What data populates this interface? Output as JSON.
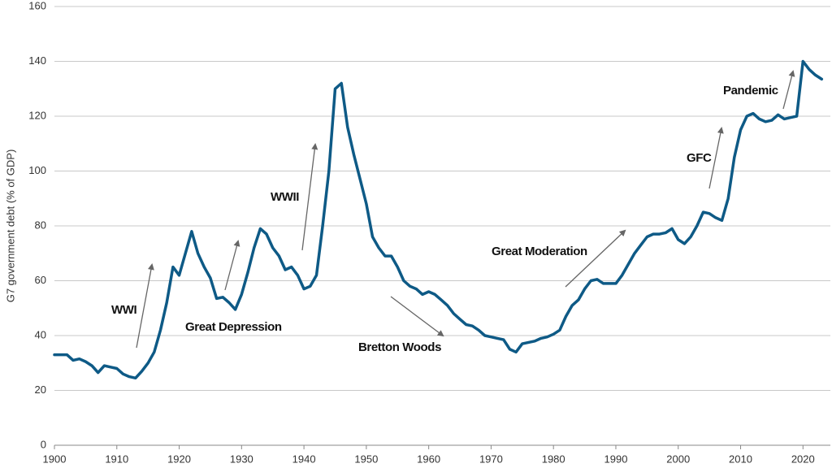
{
  "chart_data": {
    "type": "line",
    "y_label": "G7 government debt (% of GDP)",
    "x": [
      1900,
      1901,
      1902,
      1903,
      1904,
      1905,
      1906,
      1907,
      1908,
      1909,
      1910,
      1911,
      1912,
      1913,
      1914,
      1915,
      1916,
      1917,
      1918,
      1919,
      1920,
      1921,
      1922,
      1923,
      1924,
      1925,
      1926,
      1927,
      1928,
      1929,
      1930,
      1931,
      1932,
      1933,
      1934,
      1935,
      1936,
      1937,
      1938,
      1939,
      1940,
      1941,
      1942,
      1943,
      1944,
      1945,
      1946,
      1947,
      1948,
      1949,
      1950,
      1951,
      1952,
      1953,
      1954,
      1955,
      1956,
      1957,
      1958,
      1959,
      1960,
      1961,
      1962,
      1963,
      1964,
      1965,
      1966,
      1967,
      1968,
      1969,
      1970,
      1971,
      1972,
      1973,
      1974,
      1975,
      1976,
      1977,
      1978,
      1979,
      1980,
      1981,
      1982,
      1983,
      1984,
      1985,
      1986,
      1987,
      1988,
      1989,
      1990,
      1991,
      1992,
      1993,
      1994,
      1995,
      1996,
      1997,
      1998,
      1999,
      2000,
      2001,
      2002,
      2003,
      2004,
      2005,
      2006,
      2007,
      2008,
      2009,
      2010,
      2011,
      2012,
      2013,
      2014,
      2015,
      2016,
      2017,
      2018,
      2019,
      2020,
      2021,
      2022,
      2023
    ],
    "values": [
      33,
      33,
      33,
      31,
      31.5,
      30.5,
      29,
      26.5,
      29,
      28.5,
      28,
      26,
      25,
      24.5,
      27,
      30,
      34,
      42,
      52,
      65,
      62,
      70,
      78,
      70,
      65,
      61,
      53.5,
      54,
      52,
      49.5,
      55,
      63,
      72,
      79,
      77,
      72,
      69,
      64,
      65,
      62,
      57,
      58,
      62,
      80,
      100,
      130,
      132,
      116,
      106,
      97,
      88,
      76,
      72,
      69,
      69,
      65,
      60,
      58,
      57,
      55,
      56,
      55,
      53,
      51,
      48,
      46,
      44,
      43.5,
      42,
      40,
      39.5,
      39,
      38.5,
      35,
      34,
      37,
      37.5,
      38,
      39,
      39.5,
      40.5,
      42,
      47,
      51,
      53,
      57,
      60,
      60.5,
      59,
      59,
      59,
      62,
      66,
      70,
      73,
      76,
      77,
      77,
      77.5,
      79,
      75,
      73.5,
      76,
      80,
      85,
      84.5,
      83,
      82,
      90,
      105,
      115,
      120,
      121,
      119,
      118,
      118.5,
      120.5,
      119,
      119.5,
      120,
      140,
      137,
      135,
      133.5
    ],
    "color": "#0e5a86",
    "xlim": [
      1900,
      2024
    ],
    "ylim": [
      0,
      160
    ],
    "xticks": [
      1900,
      1910,
      1920,
      1930,
      1940,
      1950,
      1960,
      1970,
      1980,
      1990,
      2000,
      2010,
      2020
    ],
    "yticks": [
      0,
      20,
      40,
      60,
      80,
      100,
      120,
      140,
      160
    ],
    "grid": true,
    "annotations": [
      "WWI",
      "Great Depression",
      "WWII",
      "Bretton Woods",
      "Great Moderation",
      "GFC",
      "Pandemic"
    ]
  }
}
